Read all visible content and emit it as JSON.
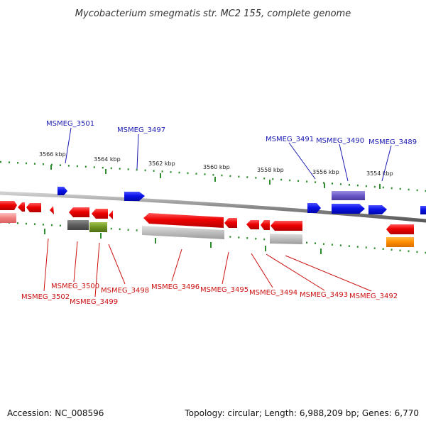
{
  "title": "Mycobacterium smegmatis str. MC2 155, complete genome",
  "footer": {
    "accession": "Accession: NC_008596",
    "summary": "Topology: circular; Length: 6,988,209 bp; Genes: 6,770"
  },
  "colors": {
    "forward_gene": "#0b16e6",
    "reverse_gene": "#ef0b0b",
    "forward_label": "#1a1ab0",
    "reverse_label": "#cc1111",
    "ticks": "#2e8b2e",
    "backbone": "#8a8a8a"
  },
  "scale_ticks": [
    "3566 kbp",
    "3564 kbp",
    "3562 kbp",
    "3560 kbp",
    "3558 kbp",
    "3556 kbp",
    "3554 kbp"
  ],
  "forward_genes": [
    "MSMEG_3501",
    "MSMEG_3497",
    "MSMEG_3491",
    "MSMEG_3490",
    "MSMEG_3489"
  ],
  "reverse_genes": [
    "MSMEG_3502",
    "MSMEG_3500",
    "MSMEG_3499",
    "MSMEG_3498",
    "MSMEG_3496",
    "MSMEG_3495",
    "MSMEG_3494",
    "MSMEG_3493",
    "MSMEG_3492"
  ]
}
